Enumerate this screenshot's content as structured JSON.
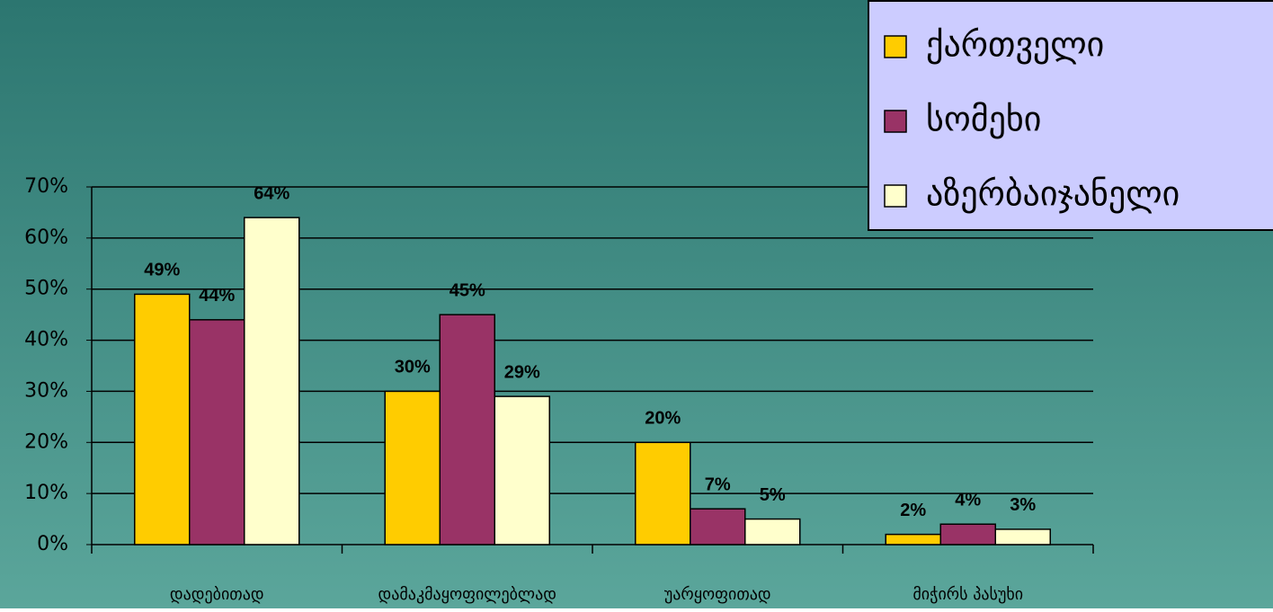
{
  "chart_data": {
    "type": "bar",
    "categories": [
      "დადებითად",
      "დამაკმაყოფილებლად",
      "უარყოფითად",
      "მიჭირს  პასუხი"
    ],
    "series": [
      {
        "name": "ქართველი",
        "color": "#ffcc00",
        "values": [
          49,
          30,
          20,
          2
        ],
        "value_labels": [
          "49%",
          "30%",
          "20%",
          "2%"
        ]
      },
      {
        "name": "სომეხი",
        "color": "#993366",
        "values": [
          44,
          45,
          7,
          4
        ],
        "value_labels": [
          "44%",
          "45%",
          "7%",
          "4%"
        ]
      },
      {
        "name": "აზერბაიჯანელი",
        "color": "#ffffcc",
        "values": [
          64,
          29,
          5,
          3
        ],
        "value_labels": [
          "64%",
          "29%",
          "5%",
          "3%"
        ]
      }
    ],
    "ylim": [
      0,
      70
    ],
    "yticks": [
      {
        "value": 0,
        "label": "0%"
      },
      {
        "value": 10,
        "label": "10%"
      },
      {
        "value": 20,
        "label": "20%"
      },
      {
        "value": 30,
        "label": "30%"
      },
      {
        "value": 40,
        "label": "40%"
      },
      {
        "value": 50,
        "label": "50%"
      },
      {
        "value": 60,
        "label": "60%"
      },
      {
        "value": 70,
        "label": "70%"
      }
    ],
    "grid": true,
    "legend": "top-right"
  }
}
